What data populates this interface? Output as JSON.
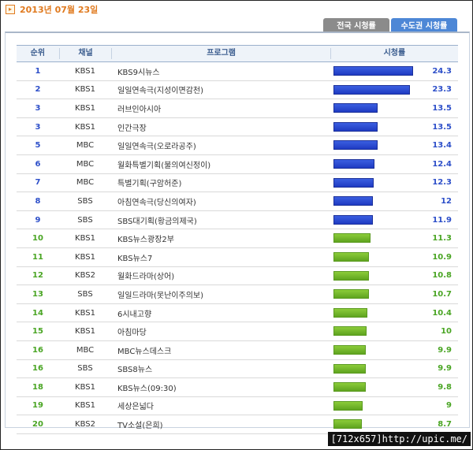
{
  "header": {
    "date": "2013년 07월 23일",
    "date_icon": "arrow-right-icon"
  },
  "tabs": [
    {
      "label": "전국 시청률",
      "active": false
    },
    {
      "label": "수도권 시청률",
      "active": true
    }
  ],
  "table": {
    "columns": [
      "순위",
      "채널",
      "프로그램",
      "시청률"
    ],
    "max_rating": 25,
    "rows": [
      {
        "rank": "1",
        "channel": "KBS1",
        "program": "KBS9시뉴스",
        "rating": 24.3,
        "rating_label": "24.3",
        "color": "blue"
      },
      {
        "rank": "2",
        "channel": "KBS1",
        "program": "일일연속극(지성이면감천)",
        "rating": 23.3,
        "rating_label": "23.3",
        "color": "blue"
      },
      {
        "rank": "3",
        "channel": "KBS1",
        "program": "러브인아시아",
        "rating": 13.5,
        "rating_label": "13.5",
        "color": "blue"
      },
      {
        "rank": "3",
        "channel": "KBS1",
        "program": "인간극장",
        "rating": 13.5,
        "rating_label": "13.5",
        "color": "blue"
      },
      {
        "rank": "5",
        "channel": "MBC",
        "program": "일일연속극(오로라공주)",
        "rating": 13.4,
        "rating_label": "13.4",
        "color": "blue"
      },
      {
        "rank": "6",
        "channel": "MBC",
        "program": "월화특별기획(불의여신정이)",
        "rating": 12.4,
        "rating_label": "12.4",
        "color": "blue"
      },
      {
        "rank": "7",
        "channel": "MBC",
        "program": "특별기획(구암허준)",
        "rating": 12.3,
        "rating_label": "12.3",
        "color": "blue"
      },
      {
        "rank": "8",
        "channel": "SBS",
        "program": "아침연속극(당신의여자)",
        "rating": 12,
        "rating_label": "12",
        "color": "blue"
      },
      {
        "rank": "9",
        "channel": "SBS",
        "program": "SBS대기획(황금의제국)",
        "rating": 11.9,
        "rating_label": "11.9",
        "color": "blue"
      },
      {
        "rank": "10",
        "channel": "KBS1",
        "program": "KBS뉴스광장2부",
        "rating": 11.3,
        "rating_label": "11.3",
        "color": "green"
      },
      {
        "rank": "11",
        "channel": "KBS1",
        "program": "KBS뉴스7",
        "rating": 10.9,
        "rating_label": "10.9",
        "color": "green"
      },
      {
        "rank": "12",
        "channel": "KBS2",
        "program": "월화드라마(상어)",
        "rating": 10.8,
        "rating_label": "10.8",
        "color": "green"
      },
      {
        "rank": "13",
        "channel": "SBS",
        "program": "일일드라마(못난이주의보)",
        "rating": 10.7,
        "rating_label": "10.7",
        "color": "green"
      },
      {
        "rank": "14",
        "channel": "KBS1",
        "program": "6시내고향",
        "rating": 10.4,
        "rating_label": "10.4",
        "color": "green"
      },
      {
        "rank": "15",
        "channel": "KBS1",
        "program": "아침마당",
        "rating": 10,
        "rating_label": "10",
        "color": "green"
      },
      {
        "rank": "16",
        "channel": "MBC",
        "program": "MBC뉴스데스크",
        "rating": 9.9,
        "rating_label": "9.9",
        "color": "green"
      },
      {
        "rank": "16",
        "channel": "SBS",
        "program": "SBS8뉴스",
        "rating": 9.9,
        "rating_label": "9.9",
        "color": "green"
      },
      {
        "rank": "18",
        "channel": "KBS1",
        "program": "KBS뉴스(09:30)",
        "rating": 9.8,
        "rating_label": "9.8",
        "color": "green"
      },
      {
        "rank": "19",
        "channel": "KBS1",
        "program": "세상은넓다",
        "rating": 9,
        "rating_label": "9",
        "color": "green"
      },
      {
        "rank": "20",
        "channel": "KBS2",
        "program": "TV소설(은희)",
        "rating": 8.7,
        "rating_label": "8.7",
        "color": "green"
      }
    ]
  },
  "footer": {
    "watermark": "[712x657]http://upic.me/"
  }
}
